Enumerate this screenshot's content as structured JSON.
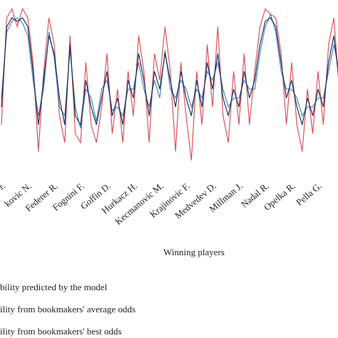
{
  "chart_data": {
    "type": "line",
    "xlabel": "Winning players",
    "categories": [
      "r.",
      null,
      null,
      null,
      null,
      "kovic N.",
      null,
      null,
      null,
      null,
      "Federer R.",
      null,
      null,
      null,
      null,
      "Fognini F.",
      null,
      null,
      null,
      null,
      "Goffin D.",
      null,
      null,
      null,
      null,
      "Hurkacz H.",
      null,
      null,
      null,
      null,
      "Kecmanovic M.",
      null,
      null,
      null,
      null,
      "Krajinovic F.",
      null,
      null,
      null,
      null,
      "Medvedev D.",
      null,
      null,
      null,
      null,
      "Millman J.",
      null,
      null,
      null,
      null,
      "Nadal R.",
      null,
      null,
      null,
      null,
      "Opelka R.",
      null,
      null,
      null,
      null,
      "Pella G.",
      null,
      null,
      null,
      null
    ],
    "ylim": [
      0,
      1
    ],
    "series": [
      {
        "name": "bility predicted by the model",
        "color": "#1c2f5e",
        "values": [
          0.4,
          0.85,
          0.9,
          0.88,
          0.9,
          0.85,
          0.6,
          0.3,
          0.55,
          0.8,
          0.7,
          0.45,
          0.3,
          0.75,
          0.35,
          0.3,
          0.55,
          0.4,
          0.3,
          0.45,
          0.6,
          0.35,
          0.45,
          0.3,
          0.55,
          0.45,
          0.7,
          0.55,
          0.35,
          0.6,
          0.5,
          0.7,
          0.55,
          0.4,
          0.6,
          0.45,
          0.35,
          0.55,
          0.4,
          0.65,
          0.5,
          0.7,
          0.45,
          0.35,
          0.5,
          0.4,
          0.6,
          0.45,
          0.55,
          0.75,
          0.88,
          0.9,
          0.85,
          0.65,
          0.45,
          0.55,
          0.4,
          0.3,
          0.45,
          0.35,
          0.5,
          0.4,
          0.65,
          0.8,
          0.55
        ]
      },
      {
        "name": "ility from bookmakers' average odds",
        "color": "#4f86b8",
        "values": [
          0.45,
          0.82,
          0.88,
          0.9,
          0.87,
          0.8,
          0.55,
          0.35,
          0.5,
          0.82,
          0.68,
          0.4,
          0.35,
          0.72,
          0.4,
          0.28,
          0.5,
          0.45,
          0.32,
          0.5,
          0.55,
          0.38,
          0.4,
          0.35,
          0.5,
          0.5,
          0.65,
          0.5,
          0.4,
          0.55,
          0.45,
          0.72,
          0.5,
          0.45,
          0.55,
          0.5,
          0.4,
          0.5,
          0.45,
          0.6,
          0.55,
          0.65,
          0.5,
          0.4,
          0.45,
          0.45,
          0.55,
          0.5,
          0.5,
          0.7,
          0.85,
          0.92,
          0.82,
          0.6,
          0.5,
          0.5,
          0.45,
          0.35,
          0.4,
          0.4,
          0.45,
          0.45,
          0.6,
          0.75,
          0.6
        ]
      },
      {
        "name": "ility from bookmakers' best odds",
        "color": "#d9545a",
        "values": [
          0.3,
          0.9,
          0.95,
          0.85,
          0.95,
          0.9,
          0.65,
          0.15,
          0.6,
          0.9,
          0.75,
          0.35,
          0.2,
          0.8,
          0.25,
          0.2,
          0.65,
          0.3,
          0.2,
          0.4,
          0.7,
          0.25,
          0.5,
          0.2,
          0.6,
          0.35,
          0.8,
          0.6,
          0.2,
          0.7,
          0.55,
          0.85,
          0.6,
          0.15,
          0.65,
          0.35,
          0.1,
          0.6,
          0.3,
          0.75,
          0.4,
          0.85,
          0.35,
          0.2,
          0.6,
          0.3,
          0.7,
          0.3,
          0.6,
          0.85,
          0.95,
          0.92,
          0.9,
          0.7,
          0.3,
          0.65,
          0.3,
          0.15,
          0.5,
          0.25,
          0.6,
          0.3,
          0.75,
          0.9,
          0.5
        ]
      }
    ]
  }
}
